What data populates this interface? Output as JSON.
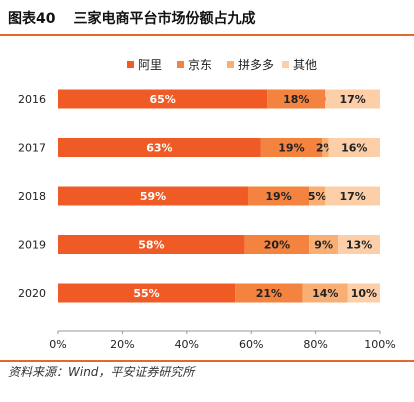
{
  "header": {
    "figure_label": "图表40",
    "title": "三家电商平台市场份额占九成"
  },
  "source": "资料来源：Wind，平安证券研究所",
  "chart_data": {
    "type": "bar",
    "orientation": "horizontal",
    "stacked": "percent",
    "categories": [
      "2016",
      "2017",
      "2018",
      "2019",
      "2020"
    ],
    "series": [
      {
        "name": "阿里",
        "values": [
          65,
          63,
          59,
          58,
          55
        ],
        "labels": [
          "65%",
          "63%",
          "59%",
          "58%",
          "55%"
        ],
        "color": "#f05a24",
        "label_color": "#ffffff"
      },
      {
        "name": "京东",
        "values": [
          18,
          19,
          19,
          20,
          21
        ],
        "labels": [
          "18%",
          "19%",
          "19%",
          "20%",
          "21%"
        ],
        "color": "#f4833f",
        "label_color": "#222222"
      },
      {
        "name": "拼多多",
        "values": [
          0,
          2,
          5,
          9,
          14
        ],
        "labels": [
          "0",
          "2%",
          "5%",
          "9%",
          "14%"
        ],
        "color": "#f9ae74",
        "label_color": "#222222"
      },
      {
        "name": "其他",
        "values": [
          17,
          16,
          17,
          13,
          10
        ],
        "labels": [
          "17%",
          "16%",
          "17%",
          "13%",
          "10%"
        ],
        "color": "#fccfa9",
        "label_color": "#222222"
      }
    ],
    "x_ticks": [
      "0%",
      "20%",
      "40%",
      "60%",
      "80%",
      "100%"
    ],
    "xlim": [
      0,
      100
    ],
    "legend": "top",
    "grid": false
  }
}
